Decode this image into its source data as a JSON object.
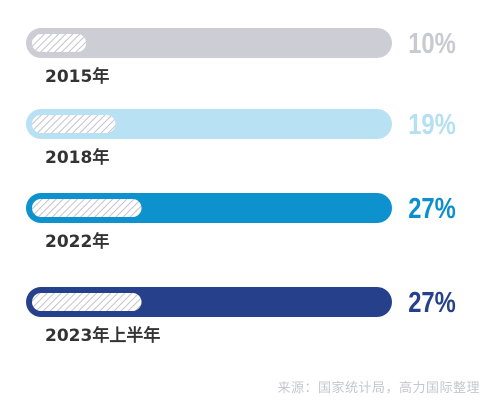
{
  "chart_data": {
    "type": "bar",
    "orientation": "horizontal",
    "categories": [
      "2015年",
      "2018年",
      "2022年",
      "2023年上半年"
    ],
    "values": [
      10,
      19,
      27,
      27
    ],
    "value_labels": [
      "10%",
      "19%",
      "27%",
      "27%"
    ],
    "xlim": [
      0,
      100
    ],
    "colors": [
      "#cdcdd5",
      "#b8e2f4",
      "#0e92ce",
      "#27408b"
    ],
    "label_colors": [
      "#c9c9d1",
      "#b4e0f2",
      "#0e8fcd",
      "#27408b"
    ],
    "inner_fill_pattern": "diagonal-hatch",
    "grid": false,
    "legend": "none"
  },
  "source": "来源：国家统计局，高力国际整理"
}
